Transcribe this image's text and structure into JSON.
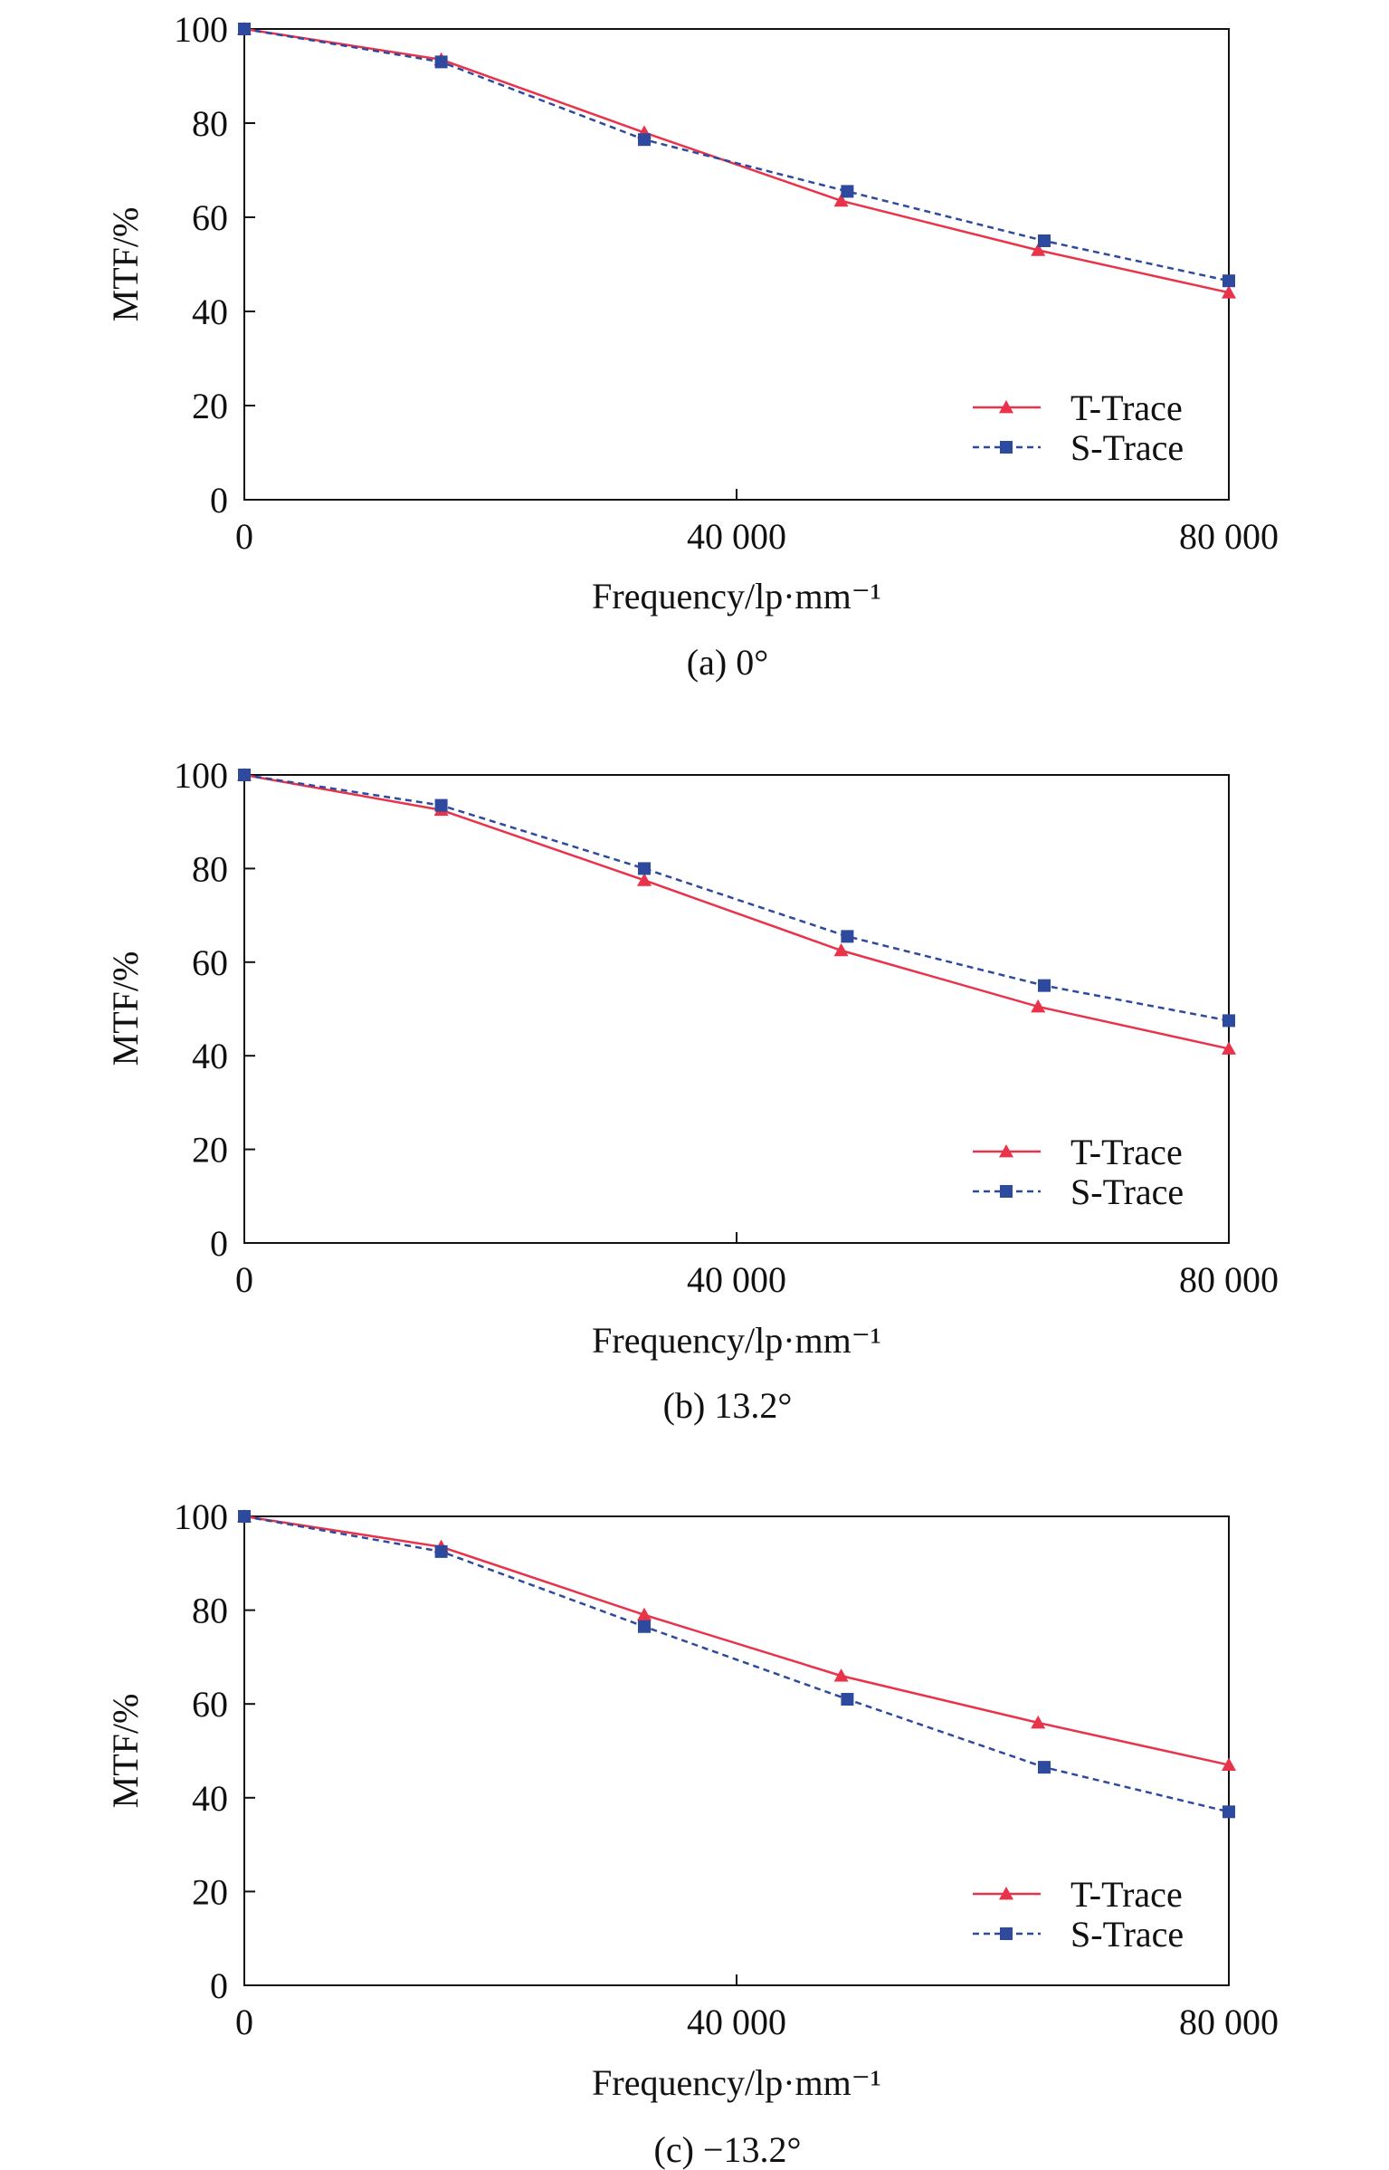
{
  "chart_data": [
    {
      "type": "line",
      "caption": "(a) 0°",
      "xlabel": "Frequency/lp·mm⁻¹",
      "ylabel": "MTF/%",
      "xlim": [
        0,
        80000
      ],
      "ylim": [
        0,
        100
      ],
      "x_ticks": [
        0,
        40000,
        80000
      ],
      "x_tick_labels": [
        "0",
        "40 000",
        "80 000"
      ],
      "y_ticks": [
        0,
        20,
        40,
        60,
        80,
        100
      ],
      "y_tick_labels": [
        "0",
        "20",
        "40",
        "60",
        "80",
        "100"
      ],
      "grid": false,
      "legend_position": "bottom-right",
      "series": [
        {
          "name": "T-Trace",
          "color": "#e8334a",
          "marker": "triangle",
          "dash": "solid",
          "x": [
            0,
            16000,
            32500,
            48500,
            64500,
            80000
          ],
          "y": [
            100,
            93.5,
            78,
            63.5,
            53,
            44
          ]
        },
        {
          "name": "S-Trace",
          "color": "#2e4a9e",
          "marker": "square",
          "dash": "dashed",
          "x": [
            0,
            16000,
            32500,
            49000,
            65000,
            80000
          ],
          "y": [
            100,
            93,
            76.5,
            65.5,
            55,
            46.5
          ]
        }
      ]
    },
    {
      "type": "line",
      "caption": "(b) 13.2°",
      "xlabel": "Frequency/lp·mm⁻¹",
      "ylabel": "MTF/%",
      "xlim": [
        0,
        80000
      ],
      "ylim": [
        0,
        100
      ],
      "x_ticks": [
        0,
        40000,
        80000
      ],
      "x_tick_labels": [
        "0",
        "40 000",
        "80 000"
      ],
      "y_ticks": [
        0,
        20,
        40,
        60,
        80,
        100
      ],
      "y_tick_labels": [
        "0",
        "20",
        "40",
        "60",
        "80",
        "100"
      ],
      "grid": false,
      "legend_position": "bottom-right",
      "series": [
        {
          "name": "T-Trace",
          "color": "#e8334a",
          "marker": "triangle",
          "dash": "solid",
          "x": [
            0,
            16000,
            32500,
            48500,
            64500,
            80000
          ],
          "y": [
            100,
            92.5,
            77.5,
            62.5,
            50.5,
            41.5
          ]
        },
        {
          "name": "S-Trace",
          "color": "#2e4a9e",
          "marker": "square",
          "dash": "dashed",
          "x": [
            0,
            16000,
            32500,
            49000,
            65000,
            80000
          ],
          "y": [
            100,
            93.5,
            80,
            65.5,
            55,
            47.5
          ]
        }
      ]
    },
    {
      "type": "line",
      "caption": "(c) −13.2°",
      "xlabel": "Frequency/lp·mm⁻¹",
      "ylabel": "MTF/%",
      "xlim": [
        0,
        80000
      ],
      "ylim": [
        0,
        100
      ],
      "x_ticks": [
        0,
        40000,
        80000
      ],
      "x_tick_labels": [
        "0",
        "40 000",
        "80 000"
      ],
      "y_ticks": [
        0,
        20,
        40,
        60,
        80,
        100
      ],
      "y_tick_labels": [
        "0",
        "20",
        "40",
        "60",
        "80",
        "100"
      ],
      "grid": false,
      "legend_position": "bottom-right",
      "series": [
        {
          "name": "T-Trace",
          "color": "#e8334a",
          "marker": "triangle",
          "dash": "solid",
          "x": [
            0,
            16000,
            32500,
            48500,
            64500,
            80000
          ],
          "y": [
            100,
            93.5,
            79,
            66,
            56,
            47
          ]
        },
        {
          "name": "S-Trace",
          "color": "#2e4a9e",
          "marker": "square",
          "dash": "dashed",
          "x": [
            0,
            16000,
            32500,
            49000,
            65000,
            80000
          ],
          "y": [
            100,
            92.5,
            76.5,
            61,
            46.5,
            37
          ]
        }
      ]
    }
  ]
}
